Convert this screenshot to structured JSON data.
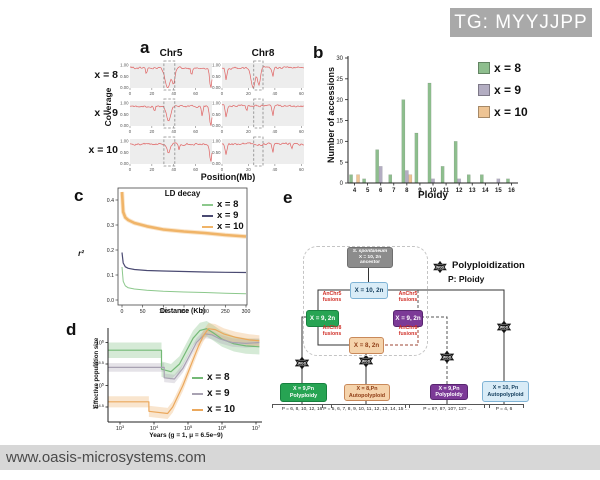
{
  "watermark_top": "TG: MYYJJPP",
  "watermark_bottom": "www.oasis-microsystems.com",
  "panel_labels": [
    "a",
    "b",
    "c",
    "d",
    "e"
  ],
  "panel_e": {
    "legend_polyploidization": "Polyploidization",
    "legend_ploidy": "P: Ploidy",
    "star_label": "WGD",
    "colors": {
      "gray": "#8c8c8c",
      "blue": "#d9ecf7",
      "green": "#27a453",
      "purple": "#7c3a97",
      "peach": "#f5d3ab"
    },
    "ancestor": {
      "line1": "S. spontaneum",
      "line2": "X = 10, 2n",
      "line3": "ancestor"
    },
    "node_x10": "X = 10, 2n",
    "node_x9_green": "X = 9, 2n",
    "node_x9_purple": "X = 9, 2n",
    "node_x8": "X = 8, 2n",
    "fusion_labels": [
      {
        "l1": "AnChr5",
        "l2": "fusions"
      },
      {
        "l1": "AnChr8",
        "l2": "fusions"
      },
      {
        "l1": "AnChr5",
        "l2": "fusions"
      },
      {
        "l1": "AnChr8",
        "l2": "fusions"
      }
    ],
    "leaf_green": {
      "l1": "X = 9,Pn",
      "l2": "Polyploidy",
      "ploidies": "P = 6, 8, 10, 12, 16"
    },
    "leaf_peach": {
      "l1": "X = 8,Pn",
      "l2": "Autopolyploid",
      "ploidies": "P = 5, 6, 7, 8, 9, 10, 11, 12, 13, 14, 15 ..."
    },
    "leaf_purple": {
      "l1": "X = 9,Pn",
      "l2": "Polyploidy",
      "ploidies": "P = 6?, 8?, 10?, 12? ..."
    },
    "leaf_blue": {
      "l1": "X = 10, Pn",
      "l2": "Autopolyploid",
      "ploidies": "P = 4, 6"
    }
  },
  "chart_data": [
    {
      "id": "panel_a_coverage",
      "type": "line",
      "rows": [
        "x = 8",
        "x = 9",
        "x = 10"
      ],
      "columns": [
        {
          "name": "Chr5",
          "mb_max": 75,
          "highlight_mb": [
            31,
            41
          ]
        },
        {
          "name": "Chr8",
          "mb_max": 62,
          "highlight_mb": [
            24,
            31
          ]
        }
      ],
      "baseline_coverage": 0.87,
      "line_color": "#e06262",
      "y_label": "Coverage",
      "x_label": "Position(Mb)",
      "y_ticks": [
        "1.00",
        "0.50",
        "0.00"
      ],
      "x_ticks": [
        0,
        20,
        40,
        60
      ],
      "subplots": [
        [
          {
            "dips": [
              {
                "c": 0.46,
                "w": 0.045,
                "d": 1.0
              },
              {
                "c": 0.53,
                "w": 0.025,
                "d": 0.8
              },
              {
                "c": 0.2,
                "w": 0.012,
                "d": 0.3
              },
              {
                "c": 0.75,
                "w": 0.012,
                "d": 0.35
              },
              {
                "c": 0.985,
                "w": 0.02,
                "d": 1.0
              }
            ]
          },
          {
            "dips": [
              {
                "c": 0.38,
                "w": 0.035,
                "d": 1.0
              },
              {
                "c": 0.45,
                "w": 0.025,
                "d": 0.85
              },
              {
                "c": 0.05,
                "w": 0.015,
                "d": 0.6
              },
              {
                "c": 0.62,
                "w": 0.012,
                "d": 0.4
              }
            ]
          }
        ],
        [
          {
            "dips": [
              {
                "c": 0.47,
                "w": 0.035,
                "d": 0.75
              },
              {
                "c": 0.3,
                "w": 0.012,
                "d": 0.3
              },
              {
                "c": 0.88,
                "w": 0.012,
                "d": 0.5
              },
              {
                "c": 0.985,
                "w": 0.02,
                "d": 1.0
              }
            ]
          },
          {
            "dips": [
              {
                "c": 0.05,
                "w": 0.015,
                "d": 0.55
              },
              {
                "c": 0.3,
                "w": 0.01,
                "d": 0.3
              },
              {
                "c": 0.62,
                "w": 0.012,
                "d": 0.5
              }
            ]
          }
        ],
        [
          {
            "dips": [
              {
                "c": 0.47,
                "w": 0.025,
                "d": 0.45
              },
              {
                "c": 0.6,
                "w": 0.01,
                "d": 0.3
              },
              {
                "c": 0.985,
                "w": 0.018,
                "d": 0.9
              }
            ]
          },
          {
            "dips": [
              {
                "c": 0.05,
                "w": 0.015,
                "d": 0.5
              },
              {
                "c": 0.62,
                "w": 0.012,
                "d": 0.45
              },
              {
                "c": 0.85,
                "w": 0.01,
                "d": 0.3
              }
            ]
          }
        ]
      ]
    },
    {
      "id": "panel_b_accessions",
      "type": "bar",
      "categories": [
        "4",
        "5",
        "6",
        "7",
        "8",
        "9",
        "10",
        "11",
        "12",
        "13",
        "14",
        "15",
        "16"
      ],
      "series": [
        {
          "name": "x = 8",
          "color": "#8ebe8e",
          "values": [
            2,
            1,
            8,
            2,
            20,
            12,
            24,
            4,
            10,
            2,
            2,
            0,
            1
          ]
        },
        {
          "name": "x = 9",
          "color": "#b3adc2",
          "values": [
            0,
            0,
            4,
            0,
            3,
            0,
            1,
            0,
            1,
            0,
            0,
            1,
            0
          ]
        },
        {
          "name": "x = 10",
          "color": "#eec494",
          "values": [
            2,
            0,
            0,
            0,
            2,
            0,
            0,
            0,
            0,
            0,
            0,
            0,
            0
          ]
        }
      ],
      "y_ticks": [
        0,
        5,
        10,
        15,
        20,
        25,
        30
      ],
      "ylim": [
        0,
        30
      ],
      "x_label": "Ploidy",
      "y_label": "Number of accessions"
    },
    {
      "id": "panel_c_ld_decay",
      "type": "line",
      "title": "LD decay",
      "x_label": "Distance (Kb)",
      "y_label": "r²",
      "x_ticks": [
        0,
        50,
        100,
        150,
        200,
        250,
        300
      ],
      "y_ticks": [
        0.0,
        0.1,
        0.2,
        0.3,
        0.4
      ],
      "xlim": [
        0,
        300
      ],
      "ylim": [
        0,
        0.45
      ],
      "series": [
        {
          "name": "x = 10",
          "color": "#f0b468",
          "width": 2.6,
          "halo": true,
          "points": [
            [
              0,
              0.432
            ],
            [
              3,
              0.352
            ],
            [
              8,
              0.33
            ],
            [
              15,
              0.32
            ],
            [
              30,
              0.308
            ],
            [
              60,
              0.295
            ],
            [
              100,
              0.282
            ],
            [
              150,
              0.274
            ],
            [
              200,
              0.268
            ],
            [
              250,
              0.26
            ],
            [
              300,
              0.254
            ]
          ]
        },
        {
          "name": "x = 9",
          "color": "#4a4a72",
          "width": 1.2,
          "halo": false,
          "points": [
            [
              0,
              0.19
            ],
            [
              3,
              0.148
            ],
            [
              8,
              0.133
            ],
            [
              15,
              0.127
            ],
            [
              30,
              0.122
            ],
            [
              60,
              0.118
            ],
            [
              100,
              0.116
            ],
            [
              150,
              0.114
            ],
            [
              200,
              0.112
            ],
            [
              250,
              0.111
            ],
            [
              300,
              0.11
            ]
          ]
        },
        {
          "name": "x = 8",
          "color": "#8cc88c",
          "width": 1.0,
          "halo": false,
          "points": [
            [
              0,
              0.132
            ],
            [
              3,
              0.075
            ],
            [
              8,
              0.057
            ],
            [
              15,
              0.049
            ],
            [
              30,
              0.044
            ],
            [
              60,
              0.039
            ],
            [
              100,
              0.035
            ],
            [
              150,
              0.032
            ],
            [
              200,
              0.03
            ],
            [
              250,
              0.027
            ],
            [
              300,
              0.025
            ]
          ]
        }
      ]
    },
    {
      "id": "panel_d_effective_population_size",
      "type": "line",
      "x_label": "Years (g = 1, μ = 6.5e−9)",
      "y_label": "Effective population size",
      "x_ticks": [
        {
          "log": 3,
          "label": "10",
          "exp": "3"
        },
        {
          "log": 4,
          "label": "10",
          "exp": "4"
        },
        {
          "log": 5,
          "label": "10",
          "exp": "5"
        },
        {
          "log": 6,
          "label": "10",
          "exp": "6"
        },
        {
          "log": 7,
          "label": "10",
          "exp": "7"
        }
      ],
      "y_ticks": [
        {
          "log": 6,
          "label": "10",
          "exp": "6"
        },
        {
          "log": 5.5,
          "label": "10",
          "exp": "5.5"
        },
        {
          "log": 5,
          "label": "10",
          "exp": "5"
        },
        {
          "log": 4.5,
          "label": "10",
          "exp": "4.5"
        }
      ],
      "series": [
        {
          "name": "x = 8",
          "color": "#74b976",
          "band": 0.18,
          "points": [
            [
              2.65,
              5.82
            ],
            [
              4.22,
              5.82
            ],
            [
              4.22,
              5.38
            ],
            [
              4.5,
              5.32
            ],
            [
              4.75,
              5.5
            ],
            [
              4.95,
              5.8
            ],
            [
              5.15,
              6.1
            ],
            [
              5.35,
              6.28
            ],
            [
              5.55,
              6.32
            ],
            [
              5.75,
              6.22
            ],
            [
              6.0,
              6.08
            ],
            [
              6.35,
              5.97
            ],
            [
              6.7,
              5.92
            ],
            [
              7.1,
              5.9
            ]
          ]
        },
        {
          "name": "x = 9",
          "color": "#a8a2b2",
          "band": 0.1,
          "points": [
            [
              2.65,
              5.42
            ],
            [
              4.3,
              5.42
            ],
            [
              4.3,
              5.18
            ],
            [
              4.6,
              5.15
            ],
            [
              4.85,
              5.4
            ],
            [
              5.05,
              5.7
            ],
            [
              5.25,
              6.0
            ],
            [
              5.5,
              6.2
            ],
            [
              5.7,
              6.18
            ],
            [
              5.95,
              6.08
            ],
            [
              6.3,
              6.0
            ],
            [
              6.7,
              5.98
            ],
            [
              7.1,
              6.0
            ]
          ]
        },
        {
          "name": "x = 10",
          "color": "#eba85c",
          "band": 0.13,
          "points": [
            [
              2.65,
              4.62
            ],
            [
              3.85,
              4.62
            ],
            [
              3.85,
              4.4
            ],
            [
              4.4,
              4.35
            ],
            [
              4.55,
              4.5
            ],
            [
              4.7,
              4.75
            ],
            [
              4.85,
              5.0
            ],
            [
              5.0,
              5.3
            ],
            [
              5.15,
              5.6
            ],
            [
              5.3,
              5.9
            ],
            [
              5.45,
              6.15
            ],
            [
              5.6,
              6.32
            ],
            [
              5.8,
              6.3
            ],
            [
              6.05,
              6.2
            ],
            [
              6.4,
              6.12
            ],
            [
              6.8,
              6.06
            ],
            [
              7.1,
              6.04
            ]
          ]
        }
      ]
    }
  ]
}
